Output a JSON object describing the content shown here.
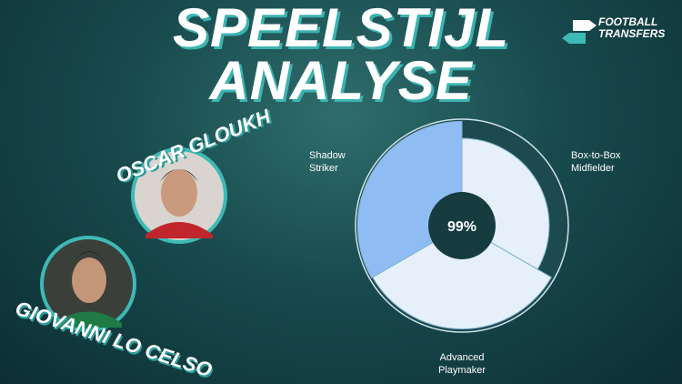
{
  "chart_data": {
    "type": "polar-area",
    "title": "SPEELSTIJL ANALYSE",
    "categories": [
      "Box-to-Box Midfielder",
      "Advanced Playmaker",
      "Shadow Striker"
    ],
    "values": [
      82,
      97,
      98
    ],
    "colors": [
      "#e6f0fb",
      "#e6f0fb",
      "#8fbdf3"
    ],
    "ylim": [
      0,
      100
    ],
    "center_value": 99,
    "center_value_label": "99%"
  },
  "players": [
    "OSCAR GLOUKH",
    "GIOVANNI LO CELSO"
  ],
  "logo": {
    "line1": "FOOTBALL",
    "line2": "TRANSFERS"
  }
}
